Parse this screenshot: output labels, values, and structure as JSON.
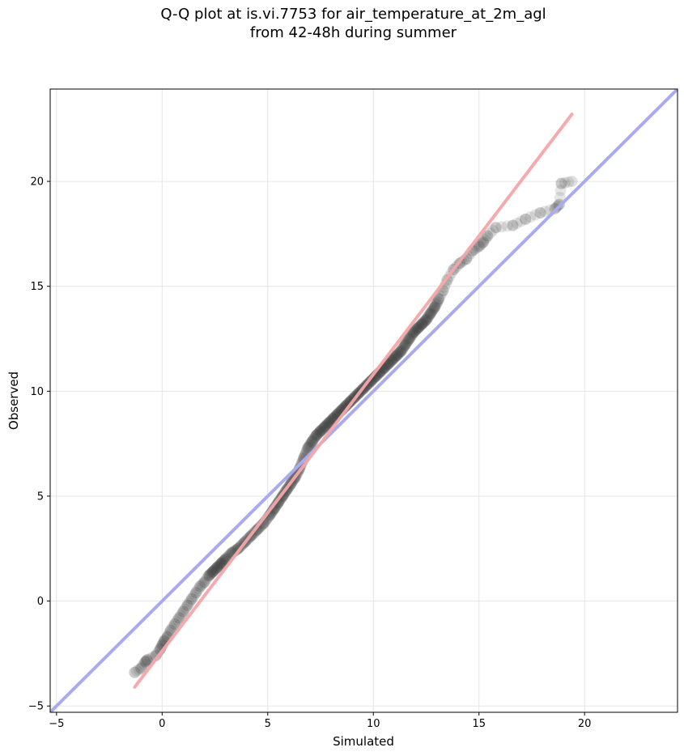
{
  "chart_data": {
    "type": "scatter",
    "title_lines": [
      "Q-Q plot at is.vi.7753 for air_temperature_at_2m_agl",
      "from 42-48h during summer"
    ],
    "xlabel": "Simulated",
    "ylabel": "Observed",
    "xlim": [
      -5.3,
      24.4
    ],
    "ylim": [
      -5.3,
      24.4
    ],
    "xticks": [
      -5,
      0,
      5,
      10,
      15,
      20
    ],
    "yticks": [
      -5,
      0,
      5,
      10,
      15,
      20
    ],
    "grid": true,
    "identity_line": {
      "color": "#aaaaee",
      "from": [
        -5.3,
        -5.3
      ],
      "to": [
        24.4,
        24.4
      ]
    },
    "fit_line": {
      "color": "#f4a6a9",
      "from": [
        -1.3,
        -4.1
      ],
      "to": [
        19.4,
        23.2
      ]
    },
    "points": {
      "color": "#333333",
      "x": [
        -1.3,
        -1.0,
        -0.8,
        -0.7,
        -0.3,
        -0.1,
        0.0,
        0.1,
        0.25,
        0.4,
        0.6,
        0.8,
        1.0,
        1.2,
        1.4,
        1.6,
        1.8,
        2.0,
        2.2,
        2.4,
        2.6,
        2.8,
        3.0,
        3.3,
        3.6,
        3.9,
        4.2,
        4.5,
        4.8,
        5.1,
        5.3,
        5.5,
        5.7,
        5.9,
        6.1,
        6.3,
        6.5,
        6.7,
        6.9,
        7.1,
        7.3,
        7.5,
        7.7,
        7.9,
        8.1,
        8.3,
        8.5,
        8.7,
        8.9,
        9.1,
        9.3,
        9.5,
        9.7,
        9.9,
        10.1,
        10.3,
        10.5,
        10.7,
        10.9,
        11.1,
        11.3,
        11.5,
        11.7,
        11.9,
        12.1,
        12.3,
        12.5,
        12.7,
        12.9,
        13.1,
        13.3,
        13.5,
        13.8,
        14.1,
        14.4,
        14.7,
        15.0,
        15.2,
        15.4,
        15.8,
        16.6,
        17.2,
        17.9,
        18.6,
        18.8,
        18.9,
        19.4
      ],
      "y": [
        -3.4,
        -3.2,
        -2.9,
        -2.8,
        -2.6,
        -2.3,
        -2.1,
        -1.9,
        -1.7,
        -1.4,
        -1.1,
        -0.8,
        -0.5,
        -0.2,
        0.1,
        0.4,
        0.7,
        0.9,
        1.2,
        1.4,
        1.6,
        1.8,
        2.0,
        2.3,
        2.5,
        2.8,
        3.1,
        3.4,
        3.7,
        4.1,
        4.4,
        4.7,
        5.0,
        5.3,
        5.6,
        5.9,
        6.3,
        6.8,
        7.3,
        7.6,
        7.9,
        8.1,
        8.3,
        8.5,
        8.7,
        8.9,
        9.1,
        9.3,
        9.5,
        9.7,
        9.9,
        10.1,
        10.3,
        10.5,
        10.7,
        10.9,
        11.1,
        11.3,
        11.5,
        11.7,
        11.9,
        12.2,
        12.5,
        12.8,
        13.0,
        13.2,
        13.4,
        13.7,
        14.0,
        14.4,
        14.8,
        15.3,
        15.8,
        16.1,
        16.3,
        16.7,
        16.9,
        17.1,
        17.4,
        17.8,
        17.9,
        18.2,
        18.5,
        18.7,
        18.9,
        19.9,
        20.0
      ]
    }
  }
}
